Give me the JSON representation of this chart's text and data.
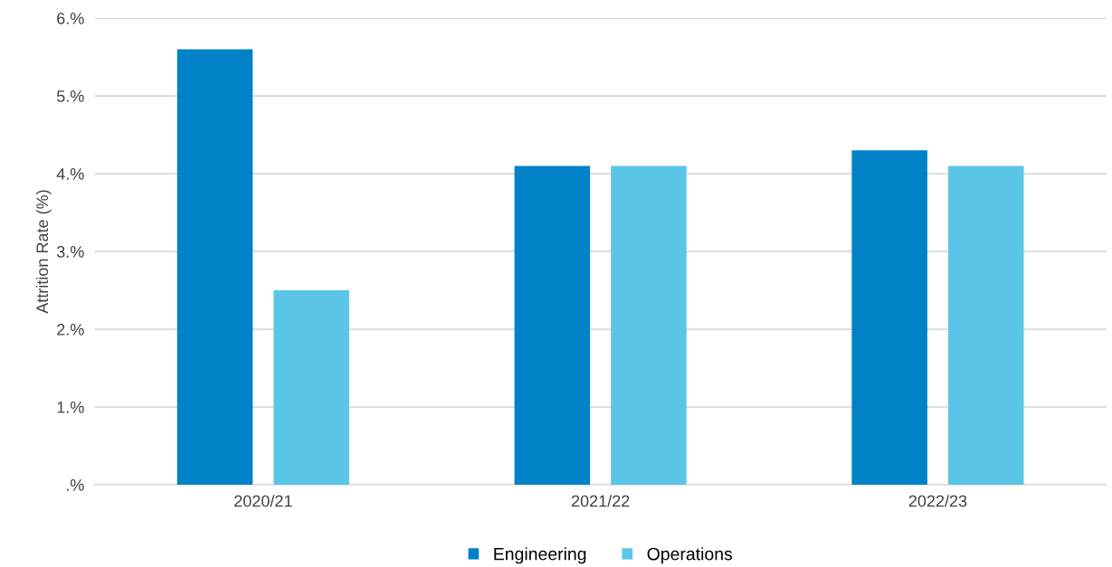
{
  "chart_data": {
    "type": "bar",
    "ylabel": "Attrition Rate (%)",
    "categories": [
      "2020/21",
      "2021/22",
      "2022/23"
    ],
    "series": [
      {
        "name": "Engineering",
        "color": "#0082c8",
        "values": [
          5.6,
          4.1,
          4.3
        ]
      },
      {
        "name": "Operations",
        "color": "#5bc5e8",
        "values": [
          2.5,
          4.1,
          4.1
        ]
      }
    ],
    "ylim": [
      0,
      6
    ],
    "yticks": [
      {
        "value": 0,
        "label": ".%"
      },
      {
        "value": 1,
        "label": "1.%"
      },
      {
        "value": 2,
        "label": "2.%"
      },
      {
        "value": 3,
        "label": "3.%"
      },
      {
        "value": 4,
        "label": "4.%"
      },
      {
        "value": 5,
        "label": "5.%"
      },
      {
        "value": 6,
        "label": "6.%"
      }
    ],
    "grid": "y",
    "legend": "bottom"
  }
}
